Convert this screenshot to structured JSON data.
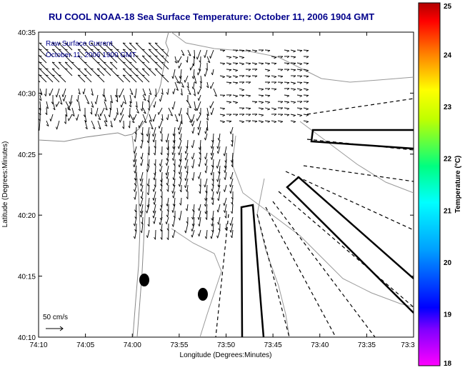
{
  "chart_data": {
    "type": "scatter",
    "title": "RU COOL  NOAA-18  Sea Surface Temperature:  October 11, 2006 1904 GMT",
    "overlay_line1": "Raw Surface Current",
    "overlay_line2": "October 11, 2006 1900 GMT",
    "xlabel": "Longitude (Degrees:Minutes)",
    "ylabel": "Latitude (Degrees:Minutes)",
    "x_ticks": [
      "74:10",
      "74:05",
      "74:00",
      "73:55",
      "73:50",
      "73:45",
      "73:40",
      "73:35",
      "73:3"
    ],
    "y_ticks": [
      "40:10",
      "40:15",
      "40:20",
      "40:25",
      "40:30",
      "40:35"
    ],
    "scale_label": "50 cm/s",
    "colorbar": {
      "label": "Temperature (°C)",
      "ticks": [
        "18",
        "19",
        "20",
        "21",
        "22",
        "23",
        "24",
        "25"
      ],
      "range": [
        18,
        25
      ]
    },
    "grid": false
  },
  "colors": {
    "title": "#00008b",
    "land_contour": "#888888",
    "vectors": "#000000"
  }
}
